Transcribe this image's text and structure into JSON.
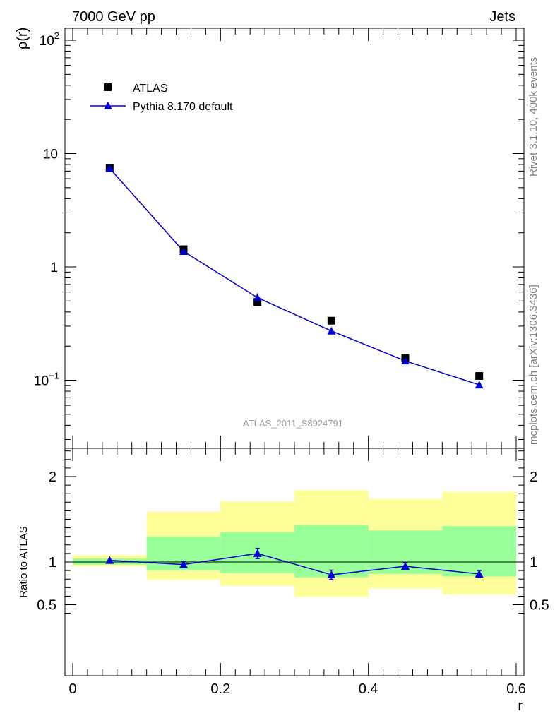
{
  "header": {
    "left": "7000 GeV pp",
    "right": "Jets"
  },
  "side_text": {
    "rivet": "Rivet 3.1.10,  400k events",
    "mcplots": "mcplots.cern.ch [arXiv:1306.3436]"
  },
  "analysis_id": "ATLAS_2011_S8924791",
  "colors": {
    "mc": "#0000cc",
    "data": "#000000",
    "band_outer": "#ffff99",
    "band_inner": "#99ff99",
    "analysis_label": "#999999",
    "side_text": "#7f7f7f"
  },
  "legend": {
    "data_label": "ATLAS",
    "mc_label": "Pythia 8.170 default"
  },
  "chart_data": [
    {
      "type": "scatter",
      "panel": "main",
      "ylabel": "ρ(r)",
      "yscale": "log",
      "xlim": [
        0,
        0.6
      ],
      "ylim": [
        0.03,
        130
      ],
      "yticks": [
        {
          "value": 0.1,
          "base": "10",
          "exp": "−1"
        },
        {
          "value": 1,
          "label": "1"
        },
        {
          "value": 10,
          "label": "10"
        },
        {
          "value": 100,
          "base": "10",
          "exp": "2"
        }
      ],
      "legend_position": "top-left",
      "series": [
        {
          "name": "ATLAS",
          "marker": "square",
          "x": [
            0.05,
            0.15,
            0.25,
            0.35,
            0.45,
            0.55
          ],
          "y": [
            7.5,
            1.43,
            0.49,
            0.335,
            0.158,
            0.109
          ]
        },
        {
          "name": "Pythia 8.170 default",
          "marker": "triangle",
          "line": true,
          "x": [
            0.05,
            0.15,
            0.25,
            0.35,
            0.45,
            0.55
          ],
          "y": [
            7.4,
            1.37,
            0.535,
            0.272,
            0.148,
            0.091
          ],
          "err_up": [
            0.15,
            0.05,
            0.05,
            0.015,
            0.006,
            0.004
          ],
          "err_down": [
            0.15,
            0.05,
            0.05,
            0.015,
            0.006,
            0.004
          ]
        }
      ]
    },
    {
      "type": "scatter",
      "panel": "ratio",
      "ylabel": "Ratio to ATLAS",
      "xlabel": "r",
      "xlim": [
        0,
        0.6
      ],
      "ylim": [
        0.4,
        2.3
      ],
      "yticks": [
        0.5,
        1,
        2
      ],
      "xticks": [
        0,
        0.2,
        0.4,
        0.6
      ],
      "reference_line": 1,
      "bands": {
        "edges": [
          0,
          0.1,
          0.2,
          0.3,
          0.4,
          0.5,
          0.6
        ],
        "outer_low": [
          0.95,
          0.79,
          0.72,
          0.59,
          0.69,
          0.62
        ],
        "outer_high": [
          1.08,
          1.59,
          1.71,
          1.84,
          1.74,
          1.82
        ],
        "inner_low": [
          0.97,
          0.9,
          0.87,
          0.82,
          0.86,
          0.83
        ],
        "inner_high": [
          1.04,
          1.3,
          1.35,
          1.43,
          1.37,
          1.42
        ]
      },
      "series": [
        {
          "name": "Pythia 8.170 default",
          "marker": "triangle",
          "line": true,
          "x": [
            0.05,
            0.15,
            0.25,
            0.35,
            0.45,
            0.55
          ],
          "y": [
            1.02,
            0.97,
            1.1,
            0.85,
            0.95,
            0.86
          ],
          "err_up": [
            0.005,
            0.035,
            0.06,
            0.055,
            0.04,
            0.04
          ],
          "err_down": [
            0.005,
            0.035,
            0.06,
            0.055,
            0.04,
            0.04
          ]
        }
      ]
    }
  ]
}
